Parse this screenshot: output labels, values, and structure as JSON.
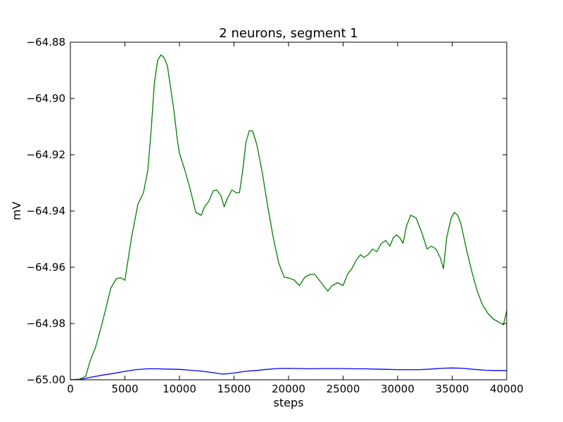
{
  "chart_data": {
    "type": "line",
    "title": "2 neurons, segment 1",
    "xlabel": "steps",
    "ylabel": "mV",
    "xlim": [
      0,
      40000
    ],
    "ylim": [
      -65.0,
      -64.88
    ],
    "xticks": [
      0,
      5000,
      10000,
      15000,
      20000,
      25000,
      30000,
      35000,
      40000
    ],
    "yticks": [
      -65.0,
      -64.98,
      -64.96,
      -64.94,
      -64.92,
      -64.9,
      -64.88
    ],
    "ytick_labels": [
      "−65.00",
      "−64.98",
      "−64.96",
      "−64.94",
      "−64.92",
      "−64.90",
      "−64.88"
    ],
    "grid": false,
    "series": [
      {
        "color": "#0000ff",
        "x": [
          0,
          1000,
          2000,
          3000,
          4000,
          5000,
          6000,
          7000,
          8000,
          9000,
          10000,
          11000,
          12000,
          13000,
          14000,
          15000,
          16000,
          17000,
          18000,
          19000,
          20000,
          21000,
          22000,
          23000,
          24000,
          25000,
          26000,
          27000,
          28000,
          29000,
          30000,
          31000,
          32000,
          33000,
          34000,
          35000,
          36000,
          37000,
          38000,
          39000,
          40000
        ],
        "values": [
          -65.0,
          -64.9998,
          -64.999,
          -64.9983,
          -64.9977,
          -64.997,
          -64.9964,
          -64.9961,
          -64.9961,
          -64.9962,
          -64.9963,
          -64.9966,
          -64.9969,
          -64.9974,
          -64.998,
          -64.9976,
          -64.997,
          -64.9967,
          -64.9963,
          -64.996,
          -64.9959,
          -64.996,
          -64.9961,
          -64.996,
          -64.996,
          -64.996,
          -64.9961,
          -64.9961,
          -64.9962,
          -64.9963,
          -64.9964,
          -64.9964,
          -64.9964,
          -64.9962,
          -64.9959,
          -64.9958,
          -64.9959,
          -64.9963,
          -64.9966,
          -64.9967,
          -64.9967
        ]
      },
      {
        "color": "#008000",
        "x": [
          0,
          800,
          1400,
          1800,
          2300,
          2800,
          3200,
          3700,
          4200,
          4600,
          5000,
          5600,
          6200,
          6700,
          7100,
          7400,
          7700,
          8000,
          8300,
          8600,
          8900,
          9200,
          9500,
          9800,
          10000,
          10500,
          11000,
          11500,
          12000,
          12300,
          12700,
          13100,
          13400,
          13800,
          14100,
          14400,
          14800,
          15200,
          15500,
          15800,
          16100,
          16400,
          16700,
          17100,
          17600,
          18100,
          18600,
          19100,
          19600,
          20000,
          20500,
          21000,
          21500,
          22000,
          22400,
          22800,
          23200,
          23600,
          24000,
          24500,
          25000,
          25400,
          25800,
          26200,
          26600,
          26900,
          27300,
          27700,
          28100,
          28500,
          28900,
          29300,
          29600,
          29900,
          30200,
          30500,
          30800,
          31200,
          31700,
          32200,
          32700,
          33100,
          33500,
          33900,
          34200,
          34500,
          34900,
          35200,
          35500,
          35800,
          36300,
          36800,
          37300,
          37800,
          38300,
          38800,
          39300,
          39700,
          40000
        ],
        "values": [
          -65.0,
          -64.9998,
          -64.9988,
          -64.9935,
          -64.9885,
          -64.9815,
          -64.9755,
          -64.9675,
          -64.9641,
          -64.9637,
          -64.9646,
          -64.9495,
          -64.9375,
          -64.9335,
          -64.9255,
          -64.9115,
          -64.8945,
          -64.8865,
          -64.8845,
          -64.8855,
          -64.8885,
          -64.8965,
          -64.9045,
          -64.9145,
          -64.9195,
          -64.9255,
          -64.9325,
          -64.9405,
          -64.9415,
          -64.9385,
          -64.9365,
          -64.9328,
          -64.9325,
          -64.9345,
          -64.9385,
          -64.9355,
          -64.9325,
          -64.9335,
          -64.9335,
          -64.9255,
          -64.9155,
          -64.9115,
          -64.9115,
          -64.9165,
          -64.9265,
          -64.9385,
          -64.9495,
          -64.9585,
          -64.9635,
          -64.9638,
          -64.9645,
          -64.9665,
          -64.9635,
          -64.9625,
          -64.9625,
          -64.9645,
          -64.9665,
          -64.9685,
          -64.9665,
          -64.9655,
          -64.9665,
          -64.9625,
          -64.9605,
          -64.9575,
          -64.9555,
          -64.9565,
          -64.9555,
          -64.9535,
          -64.9545,
          -64.9515,
          -64.9505,
          -64.9525,
          -64.9495,
          -64.9485,
          -64.9495,
          -64.9515,
          -64.9455,
          -64.9415,
          -64.9425,
          -64.9475,
          -64.9535,
          -64.9525,
          -64.9535,
          -64.9565,
          -64.9605,
          -64.9495,
          -64.9425,
          -64.9405,
          -64.9415,
          -64.9445,
          -64.9535,
          -64.9615,
          -64.9685,
          -64.9735,
          -64.9765,
          -64.9785,
          -64.9795,
          -64.9805,
          -64.9755
        ]
      }
    ]
  }
}
